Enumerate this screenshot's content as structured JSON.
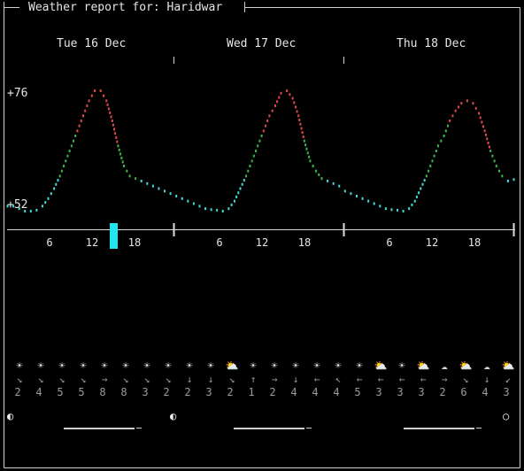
{
  "window": {
    "title": "Weather report for: Haridwar"
  },
  "days": [
    {
      "label": "Tue 16 Dec",
      "moon": "◐"
    },
    {
      "label": "Wed 17 Dec",
      "moon": "◐"
    },
    {
      "label": "Thu 18 Dec",
      "moon": "○"
    }
  ],
  "chart_data": {
    "type": "line",
    "title": "",
    "ylabel": "",
    "y_tick_labels": [
      "+76",
      "+52"
    ],
    "ylim": [
      52,
      76
    ],
    "x_tick_labels": [
      "6",
      "12",
      "18",
      "6",
      "12",
      "18",
      "6",
      "12",
      "18"
    ],
    "series": [
      {
        "values": [
          53,
          53,
          52.5,
          52,
          52,
          52.2,
          53,
          54.5,
          56.5,
          59,
          62,
          65,
          68,
          71,
          74,
          76,
          76,
          74,
          70,
          65,
          61,
          59,
          58.5,
          58,
          57.5,
          57,
          56.5,
          56,
          55.5,
          55,
          54.5,
          54,
          53.5,
          53,
          52.5,
          52.3,
          52.2,
          52,
          52.5,
          54,
          56.5,
          59,
          62,
          65,
          68,
          71,
          73,
          75.5,
          76,
          74.5,
          71,
          66,
          62,
          60,
          58.5,
          58,
          57.5,
          57,
          56,
          55.5,
          55,
          54.5,
          54,
          53.5,
          53,
          52.5,
          52.3,
          52.2,
          52,
          52.5,
          54,
          56.5,
          59,
          62,
          65,
          67,
          70,
          72,
          73.5,
          74,
          73.5,
          71.5,
          68,
          64,
          61,
          59,
          58,
          58.3
        ]
      }
    ],
    "colors": {
      "low": "#44d8d8",
      "mid": "#3cb64c",
      "high": "#e04848"
    },
    "current_time_marker": {
      "day": 0,
      "hour": 15
    }
  },
  "weather_symbols": [
    "☀",
    "☀",
    "☀",
    "☀",
    "☀",
    "☀",
    "☀",
    "☀",
    "☀",
    "☀",
    "⛅",
    "☀",
    "☀",
    "☀",
    "☀",
    "☀",
    "☀",
    "⛅",
    "☀",
    "⛅",
    "☁",
    "⛅",
    "☁",
    "⛅"
  ],
  "wind_directions": [
    "↘",
    "↘",
    "↘",
    "↘",
    "→",
    "↘",
    "↘",
    "↘",
    "↓",
    "↓",
    "↘",
    "↑",
    "→",
    "↓",
    "←",
    "↖",
    "←",
    "←",
    "←",
    "←",
    "→",
    "↘",
    "↓",
    "↙"
  ],
  "wind_speeds": [
    "2",
    "4",
    "5",
    "5",
    "8",
    "8",
    "3",
    "2",
    "2",
    "3",
    "2",
    "1",
    "2",
    "4",
    "4",
    "4",
    "5",
    "3",
    "3",
    "3",
    "2",
    "6",
    "4",
    "3"
  ]
}
